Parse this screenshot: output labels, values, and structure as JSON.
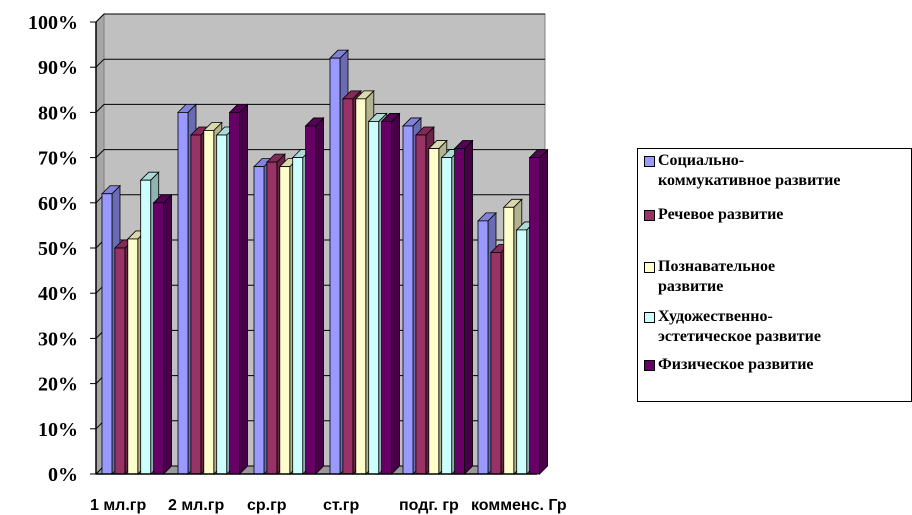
{
  "chart_data": {
    "type": "bar",
    "categories": [
      "1 мл.гр",
      "2 мл.гр",
      "ср.гр",
      "ст.гр",
      "подг. гр",
      "комменс. Гр"
    ],
    "series": [
      {
        "name": "Социально-коммукативное развитие",
        "color": "#9999FF",
        "values": [
          62,
          80,
          68,
          92,
          77,
          56
        ]
      },
      {
        "name": "Речевое развитие",
        "color": "#993366",
        "values": [
          50,
          75,
          69,
          83,
          75,
          49
        ]
      },
      {
        "name": "Познавательное развитие",
        "color": "#FFFFCC",
        "values": [
          52,
          76,
          68,
          83,
          72,
          59
        ]
      },
      {
        "name": "Художественно-эстетическое развитие",
        "color": "#CCFFFF",
        "values": [
          65,
          75,
          70,
          78,
          70,
          54
        ]
      },
      {
        "name": "Физическое развитие",
        "color": "#660066",
        "values": [
          60,
          80,
          77,
          78,
          72,
          70
        ]
      }
    ],
    "yticks": [
      "0%",
      "10%",
      "20%",
      "30%",
      "40%",
      "50%",
      "60%",
      "70%",
      "80%",
      "90%",
      "100%"
    ],
    "ylim": [
      0,
      100
    ],
    "plot_background": "#C0C0C0",
    "legend_position": "right",
    "title": "",
    "xlabel": "",
    "ylabel": ""
  },
  "legend": {
    "items": [
      {
        "line1": "Социально-",
        "line2": "коммукативное развитие",
        "color": "#9999FF"
      },
      {
        "line1": "Речевое развитие",
        "line2": "",
        "color": "#993366"
      },
      {
        "line1": "Познавательное",
        "line2": "развитие",
        "color": "#FFFFCC"
      },
      {
        "line1": "Художественно-",
        "line2": "эстетическое развитие",
        "color": "#CCFFFF"
      },
      {
        "line1": "Физическое развитие",
        "line2": "",
        "color": "#660066"
      }
    ]
  }
}
